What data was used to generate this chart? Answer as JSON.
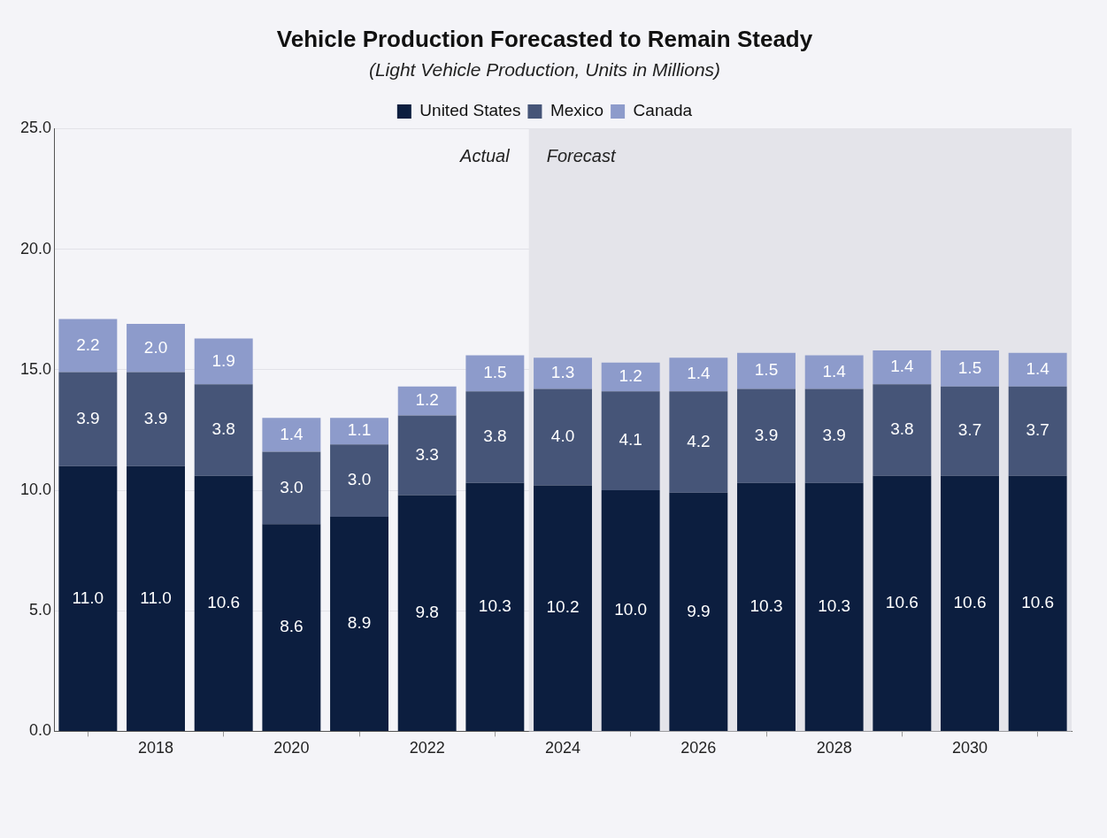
{
  "chart_data": {
    "type": "bar",
    "title": "Vehicle Production Forecasted to Remain Steady",
    "subtitle": "(Light Vehicle Production, Units in Millions)",
    "x": [
      2017,
      2018,
      2019,
      2020,
      2021,
      2022,
      2023,
      2024,
      2025,
      2026,
      2027,
      2028,
      2029,
      2030,
      2031
    ],
    "xlim": [
      2016.5,
      2031.5
    ],
    "xticks": [
      2018,
      2020,
      2022,
      2024,
      2026,
      2028,
      2030
    ],
    "ylim": [
      0,
      25
    ],
    "yticks": [
      {
        "value": 0,
        "label": "0.0"
      },
      {
        "value": 5,
        "label": "5.0"
      },
      {
        "value": 10,
        "label": "10.0"
      },
      {
        "value": 15,
        "label": "15.0"
      },
      {
        "value": 20,
        "label": "20.0"
      },
      {
        "value": 25,
        "label": "25.0"
      }
    ],
    "stacked": true,
    "grid": "y",
    "legend": "top",
    "series": [
      {
        "name": "United States",
        "color": "#0c1e3f",
        "values": [
          11.0,
          11.0,
          10.6,
          8.6,
          8.9,
          9.8,
          10.3,
          10.2,
          10.0,
          9.9,
          10.3,
          10.3,
          10.6,
          10.6,
          10.6
        ],
        "value_labels": [
          "11.0",
          "11.0",
          "10.6",
          "8.6",
          "8.9",
          "9.8",
          "10.3",
          "10.2",
          "10.0",
          "9.9",
          "10.3",
          "10.3",
          "10.6",
          "10.6",
          "10.6"
        ]
      },
      {
        "name": "Mexico",
        "color": "#465578",
        "values": [
          3.9,
          3.9,
          3.8,
          3.0,
          3.0,
          3.3,
          3.8,
          4.0,
          4.1,
          4.2,
          3.9,
          3.9,
          3.8,
          3.7,
          3.7
        ],
        "value_labels": [
          "3.9",
          "3.9",
          "3.8",
          "3.0",
          "3.0",
          "3.3",
          "3.8",
          "4.0",
          "4.1",
          "4.2",
          "3.9",
          "3.9",
          "3.8",
          "3.7",
          "3.7"
        ]
      },
      {
        "name": "Canada",
        "color": "#8d9bcb",
        "values": [
          2.2,
          2.0,
          1.9,
          1.4,
          1.1,
          1.2,
          1.5,
          1.3,
          1.2,
          1.4,
          1.5,
          1.4,
          1.4,
          1.5,
          1.4
        ],
        "value_labels": [
          "2.2",
          "2.0",
          "1.9",
          "1.4",
          "1.1",
          "1.2",
          "1.5",
          "1.3",
          "1.2",
          "1.4",
          "1.5",
          "1.4",
          "1.4",
          "1.5",
          "1.4"
        ]
      }
    ],
    "bands": [
      {
        "axis": "x",
        "from": 2023.5,
        "to": 2031.5,
        "label": "Forecast",
        "color": "#e4e4ea"
      }
    ],
    "annotations": [
      "Actual"
    ]
  }
}
